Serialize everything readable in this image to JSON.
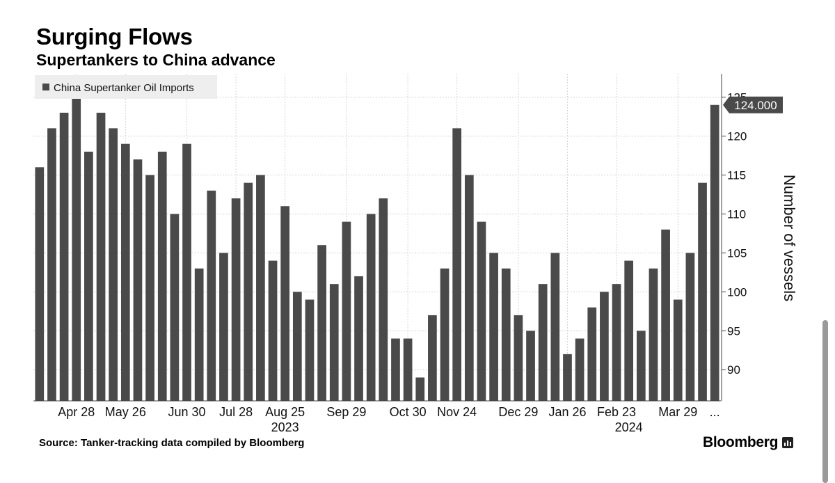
{
  "header": {
    "title": "Surging Flows",
    "subtitle": "Supertankers to China advance"
  },
  "footer": {
    "source": "Source: Tanker-tracking data compiled by Bloomberg",
    "brand": "Bloomberg"
  },
  "chart_data": {
    "type": "bar",
    "title": "Surging Flows",
    "subtitle": "Supertankers to China advance",
    "ylabel": "Number of vessels",
    "xlabel": "",
    "ylim": [
      86,
      128
    ],
    "yticks": [
      90,
      95,
      100,
      105,
      110,
      115,
      120,
      125
    ],
    "grid": true,
    "legend": {
      "position": "top-left",
      "entries": [
        "China Supertanker Oil Imports"
      ]
    },
    "colors": {
      "bar": "#4a4a4a",
      "grid": "#d4d4d4",
      "axis": "#444444",
      "callout": "#4a4a4a"
    },
    "series": [
      {
        "name": "China Supertanker Oil Imports",
        "values": [
          116,
          121,
          123,
          125,
          118,
          123,
          121,
          119,
          117,
          115,
          118,
          110,
          119,
          103,
          113,
          105,
          112,
          114,
          115,
          104,
          111,
          100,
          99,
          106,
          101,
          109,
          102,
          110,
          112,
          94,
          94,
          89,
          97,
          103,
          121,
          115,
          109,
          105,
          103,
          97,
          95,
          101,
          105,
          92,
          94,
          98,
          100,
          101,
          104,
          95,
          103,
          108,
          99,
          105,
          114,
          124
        ]
      }
    ],
    "x_tick_labels": [
      {
        "index": 3,
        "label": "Apr 28"
      },
      {
        "index": 7,
        "label": "May 26"
      },
      {
        "index": 12,
        "label": "Jun 30"
      },
      {
        "index": 16,
        "label": "Jul 28"
      },
      {
        "index": 20,
        "label": "Aug 25"
      },
      {
        "index": 25,
        "label": "Sep 29"
      },
      {
        "index": 30,
        "label": "Oct 30"
      },
      {
        "index": 34,
        "label": "Nov 24"
      },
      {
        "index": 39,
        "label": "Dec 29"
      },
      {
        "index": 43,
        "label": "Jan 26"
      },
      {
        "index": 47,
        "label": "Feb 23"
      },
      {
        "index": 52,
        "label": "Mar 29"
      },
      {
        "index": 55,
        "label": "..."
      }
    ],
    "year_labels": [
      {
        "index": 20,
        "label": "2023"
      },
      {
        "index": 48,
        "label": "2024"
      }
    ],
    "annotations": [
      {
        "index": 55,
        "label": "124.000"
      }
    ]
  }
}
